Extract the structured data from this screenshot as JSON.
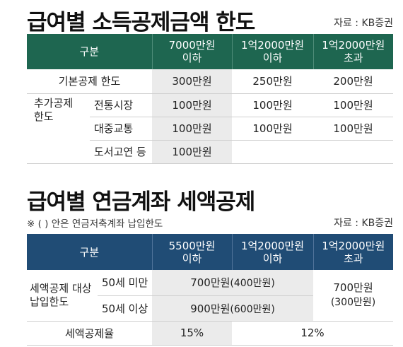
{
  "section1": {
    "title": "급여별 소득공제금액 한도",
    "source": "자료 : KB증권",
    "headers": [
      "구분",
      "7000만원 이하",
      "1억2000만원 이하",
      "1억2000만원 초과"
    ],
    "header_lines": [
      [
        "구분"
      ],
      [
        "7000만원",
        "이하"
      ],
      [
        "1억2000만원",
        "이하"
      ],
      [
        "1억2000만원",
        "초과"
      ]
    ],
    "basic_label": "기본공제 한도",
    "basic_values": [
      "300만원",
      "250만원",
      "200만원"
    ],
    "extra_label_lines": [
      "추가공제",
      "한도"
    ],
    "rows": [
      {
        "label": "전통시장",
        "values": [
          "100만원",
          "100만원",
          "100만원"
        ]
      },
      {
        "label": "대중교통",
        "values": [
          "100만원",
          "100만원",
          "100만원"
        ]
      },
      {
        "label": "도서고연 등",
        "values": [
          "100만원",
          "",
          ""
        ]
      }
    ]
  },
  "section2": {
    "title": "급여별 연금계좌 세액공제",
    "note": "※ (  ) 안은 연금저축계좌 납입한도",
    "source": "자료 : KB증권",
    "header_lines": [
      [
        "구분"
      ],
      [
        "5500만원",
        "이하"
      ],
      [
        "1억2000만원",
        "이하"
      ],
      [
        "1억2000만원",
        "초과"
      ]
    ],
    "group_label_lines": [
      "세액공제 대상",
      "납입한도"
    ],
    "rows": [
      {
        "label": "50세 미만",
        "value": "700만원",
        "paren": "(400만원)"
      },
      {
        "label": "50세 이상",
        "value": "900만원",
        "paren": "(600만원)"
      }
    ],
    "over_value": "700만원",
    "over_paren": "(300만원)",
    "rate_label": "세액공제율",
    "rate_values": [
      "15%",
      "12%"
    ]
  }
}
